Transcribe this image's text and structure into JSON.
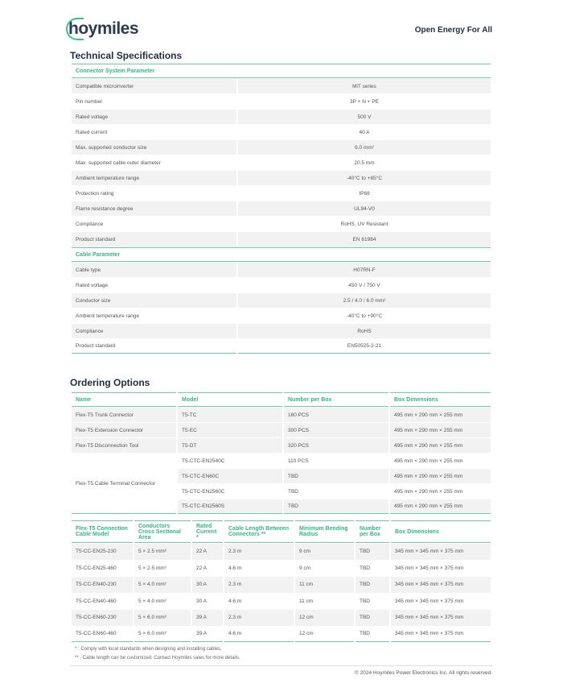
{
  "header": {
    "logo": "hoymiles",
    "tagline": "Open Energy For All"
  },
  "tech": {
    "title": "Technical Specifications",
    "connector_title": "Connector System Parameter",
    "connector": [
      [
        "Compatible microinverter",
        "MiT series"
      ],
      [
        "Pin number",
        "3P + N + PE"
      ],
      [
        "Rated voltage",
        "500 V"
      ],
      [
        "Rated current",
        "40 A"
      ],
      [
        "Max. supported conductor size",
        "6.0 mm²"
      ],
      [
        "Max. supported cable outer diameter",
        "20.5 mm"
      ],
      [
        "Ambient temperature range",
        "-40°C to +85°C"
      ],
      [
        "Protection rating",
        "IP68"
      ],
      [
        "Flame resistance degree",
        "UL94-V0"
      ],
      [
        "Compliance",
        "RoHS, UV Resistant"
      ],
      [
        "Product standard",
        "EN 61984"
      ]
    ],
    "cable_title": "Cable Parameter",
    "cable": [
      [
        "Cable type",
        "H07RN-F"
      ],
      [
        "Rated voltage",
        "450 V / 750 V"
      ],
      [
        "Conductor size",
        "2.5 / 4.0 / 6.0 mm²"
      ],
      [
        "Ambient temperature range",
        "-40°C to +90°C"
      ],
      [
        "Compliance",
        "RoHS"
      ],
      [
        "Product standard",
        "EN50525-2-21"
      ]
    ]
  },
  "ordering": {
    "title": "Ordering Options",
    "headers": [
      "Name",
      "Model",
      "Number per Box",
      "Box Dimensions"
    ],
    "rows": [
      [
        "Flex-T5 Trunk Connector",
        "T5-TC",
        "160 PCS",
        "495 mm × 290 mm × 255 mm"
      ],
      [
        "Flex-T5 Extension Connector",
        "T5-EC",
        "300 PCS",
        "495 mm × 290 mm × 255 mm"
      ],
      [
        "Flex-T5 Disconnection Tool",
        "T5-DT",
        "320 PCS",
        "495 mm × 290 mm × 255 mm"
      ]
    ],
    "terminal_name": "Flex-T5 Cable Terminal Connector",
    "terminal_rows": [
      [
        "T5-CTC-EN2540C",
        "110 PCS",
        "495 mm × 290 mm × 255 mm"
      ],
      [
        "T5-CTC-EN60C",
        "TBD",
        "495 mm × 290 mm × 255 mm"
      ],
      [
        "T5-CTC-EN2560C",
        "TBD",
        "495 mm × 290 mm × 255 mm"
      ],
      [
        "T5-CTC-EN2560S",
        "TBD",
        "495 mm × 290 mm × 255 mm"
      ]
    ],
    "cable_headers": [
      "Flex-T5 Connection Cable Model",
      "Conductors Cross Sectional Area",
      "Rated Current *",
      "Cable Length Between Connectors **",
      "Minimum Bending Radius",
      "Number per Box",
      "Box Dimensions"
    ],
    "cable_rows": [
      [
        "T5-CC-EN25-230",
        "5 × 2.5 mm²",
        "22 A",
        "2.3 m",
        "9 cm",
        "TBD",
        "345 mm × 345 mm × 375 mm"
      ],
      [
        "T5-CC-EN25-460",
        "5 × 2.5 mm²",
        "22 A",
        "4.6 m",
        "9 cm",
        "TBD",
        "345 mm × 345 mm × 375 mm"
      ],
      [
        "T5-CC-EN40-230",
        "5 × 4.0 mm²",
        "30 A",
        "2.3 m",
        "11 cm",
        "TBD",
        "345 mm × 345 mm × 375 mm"
      ],
      [
        "T5-CC-EN40-460",
        "5 × 4.0 mm²",
        "30 A",
        "4.6 m",
        "11 cm",
        "TBD",
        "345 mm × 345 mm × 375 mm"
      ],
      [
        "T5-CC-EN60-230",
        "5 × 6.0 mm²",
        "39 A",
        "2.3 m",
        "12 cm",
        "TBD",
        "345 mm × 345 mm × 375 mm"
      ],
      [
        "T5-CC-EN60-460",
        "5 × 6.0 mm²",
        "39 A",
        "4.6 m",
        "12 cm",
        "TBD",
        "345 mm × 345 mm × 375 mm"
      ]
    ]
  },
  "footnotes": [
    "*    : Comply with local standards when designing and installing cables.",
    "** : Cable length can be customized. Contact Hoymiles sales for more details."
  ],
  "copyright": "© 2024 Hoymiles Power Electronics Inc. All rights reserved."
}
